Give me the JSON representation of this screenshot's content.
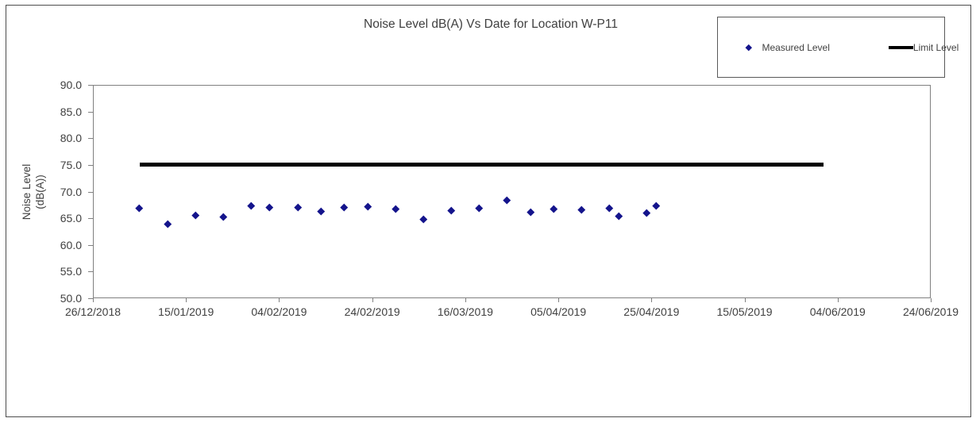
{
  "chart_data": {
    "type": "scatter",
    "title": "Noise Level dB(A) Vs Date for Location W-P11",
    "ylabel_lines": [
      "Noise Level",
      "(dB(A))"
    ],
    "xlabel": "",
    "ylim": [
      50.0,
      90.0
    ],
    "xlim": [
      "26/12/2018",
      "24/06/2019"
    ],
    "grid": false,
    "y_tick_labels": [
      "90.0",
      "85.0",
      "80.0",
      "75.0",
      "70.0",
      "65.0",
      "60.0",
      "55.0",
      "50.0"
    ],
    "y_tick_values": [
      90,
      85,
      80,
      75,
      70,
      65,
      60,
      55,
      50
    ],
    "x_tick_labels": [
      "26/12/2018",
      "15/01/2019",
      "04/02/2019",
      "24/02/2019",
      "16/03/2019",
      "05/04/2019",
      "25/04/2019",
      "15/05/2019",
      "04/06/2019",
      "24/06/2019"
    ],
    "legend": {
      "position": "top-right",
      "entries": [
        {
          "name": "Measured Level",
          "marker": "diamond",
          "color": "#14148C"
        },
        {
          "name": "Limit Level",
          "marker": "thick-line",
          "color": "#000000"
        }
      ]
    },
    "series": [
      {
        "name": "Measured Level",
        "type": "scatter",
        "marker": "diamond",
        "color": "#14148C",
        "points": [
          {
            "date": "05/01/2019",
            "value": 66.9
          },
          {
            "date": "11/01/2019",
            "value": 64.0
          },
          {
            "date": "17/01/2019",
            "value": 65.6
          },
          {
            "date": "23/01/2019",
            "value": 65.3
          },
          {
            "date": "29/01/2019",
            "value": 67.3
          },
          {
            "date": "02/02/2019",
            "value": 67.1
          },
          {
            "date": "08/02/2019",
            "value": 67.0
          },
          {
            "date": "13/02/2019",
            "value": 66.3
          },
          {
            "date": "18/02/2019",
            "value": 67.1
          },
          {
            "date": "23/02/2019",
            "value": 67.2
          },
          {
            "date": "01/03/2019",
            "value": 66.7
          },
          {
            "date": "07/03/2019",
            "value": 64.9
          },
          {
            "date": "13/03/2019",
            "value": 66.4
          },
          {
            "date": "19/03/2019",
            "value": 66.9
          },
          {
            "date": "25/03/2019",
            "value": 68.4
          },
          {
            "date": "30/03/2019",
            "value": 66.2
          },
          {
            "date": "04/04/2019",
            "value": 66.7
          },
          {
            "date": "10/04/2019",
            "value": 66.6
          },
          {
            "date": "16/04/2019",
            "value": 66.9
          },
          {
            "date": "18/04/2019",
            "value": 65.4
          },
          {
            "date": "24/04/2019",
            "value": 66.0
          },
          {
            "date": "26/04/2019",
            "value": 67.4
          }
        ]
      },
      {
        "name": "Limit Level",
        "type": "line",
        "color": "#000000",
        "stroke_px": 5,
        "points": [
          {
            "date": "05/01/2019",
            "value": 75.0
          },
          {
            "date": "01/06/2019",
            "value": 75.0
          }
        ]
      }
    ]
  }
}
